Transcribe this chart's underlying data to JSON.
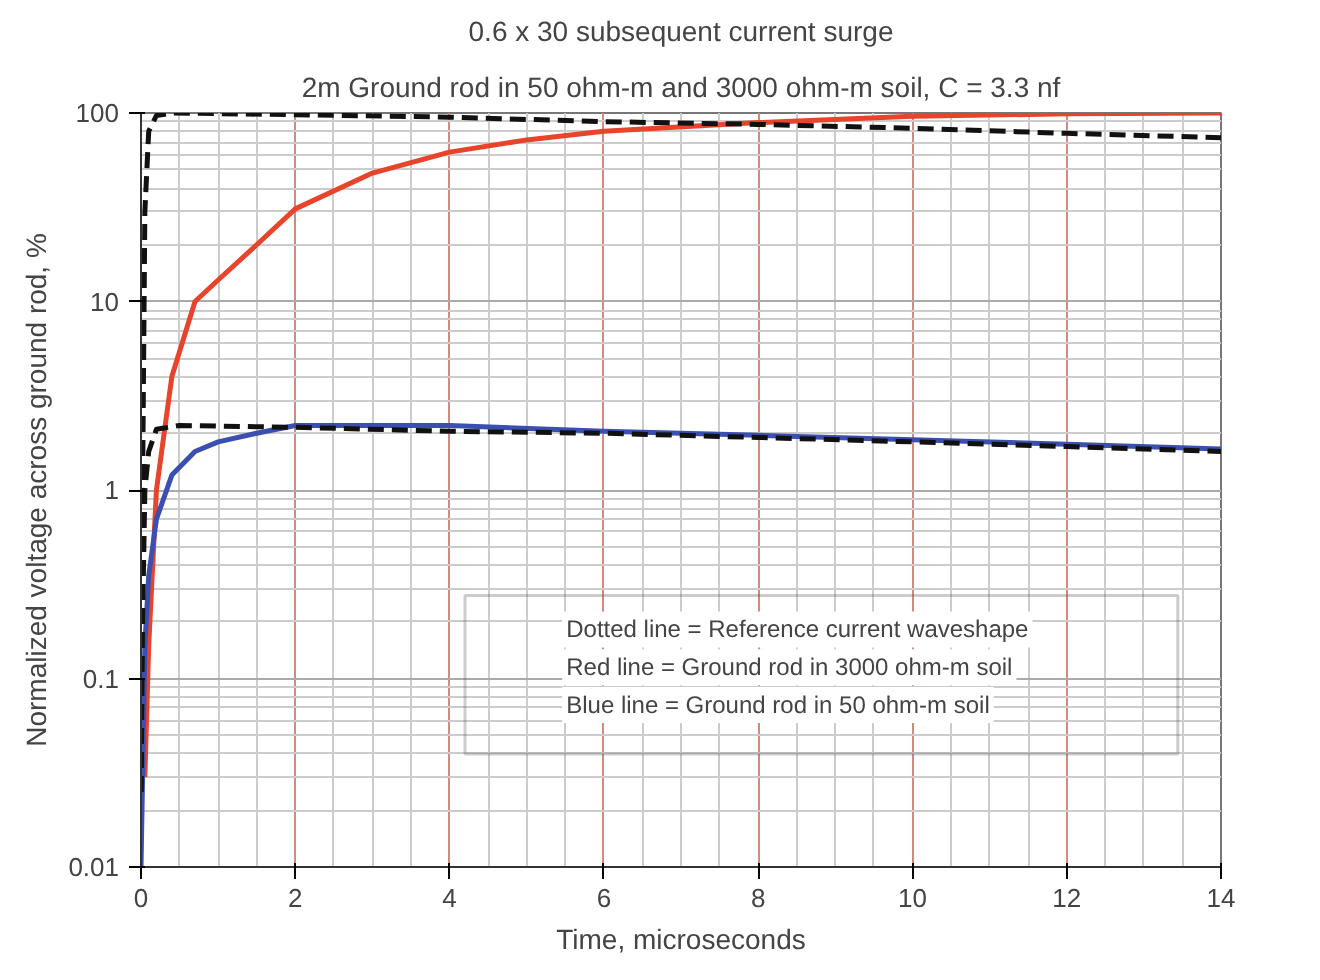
{
  "chart_data": {
    "type": "line",
    "title": "0.6 x 30 subsequent current surge",
    "subtitle": "2m Ground rod in 50 ohm-m and 3000 ohm-m soil, C = 3.3 nf",
    "xlabel": "Time, microseconds",
    "ylabel": "Normalized voltage across ground rod, %",
    "log": "y",
    "xlim": [
      0,
      14
    ],
    "xticks": [
      0,
      2,
      4,
      6,
      8,
      10,
      12,
      14
    ],
    "ylim": [
      0.01,
      100
    ],
    "yticks": [
      0.01,
      0.1,
      1,
      10,
      100
    ],
    "grid": true,
    "marker": "none",
    "annotations": [
      "Dotted line = Reference current waveshape",
      "Red line = Ground rod in 3000 ohm-m soil",
      "Blue line = Ground rod in 50 ohm-m soil"
    ],
    "series": [
      {
        "color": "#e8432b",
        "line_style": "solid",
        "x": [
          0.05,
          0.1,
          0.2,
          0.4,
          0.7,
          1,
          1.5,
          2,
          3,
          4,
          5,
          6,
          8,
          10,
          12,
          14
        ],
        "values": [
          0.03,
          0.15,
          1,
          4,
          10,
          13,
          20,
          31,
          48,
          62,
          72,
          80,
          89,
          96,
          99,
          100
        ]
      },
      {
        "color": "#3a4fb0",
        "line_style": "solid",
        "x": [
          0,
          0.05,
          0.1,
          0.2,
          0.4,
          0.7,
          1,
          1.5,
          2,
          4,
          6,
          8,
          10,
          12,
          14
        ],
        "values": [
          0.01,
          0.15,
          0.35,
          0.7,
          1.2,
          1.6,
          1.8,
          2,
          2.2,
          2.2,
          2.05,
          1.95,
          1.85,
          1.75,
          1.65
        ]
      },
      {
        "color": "#111111",
        "line_style": "dashed",
        "x": [
          0,
          0.02,
          0.05,
          0.1,
          0.2,
          0.4,
          2,
          4,
          6,
          8,
          10,
          12,
          14
        ],
        "values": [
          0.025,
          1,
          30,
          80,
          97,
          100,
          98,
          95,
          90,
          87,
          83,
          78,
          74
        ]
      },
      {
        "color": "#111111",
        "line_style": "dashed",
        "x": [
          0,
          0.02,
          0.05,
          0.1,
          0.2,
          0.5,
          2,
          4,
          6,
          8,
          10,
          12,
          14
        ],
        "values": [
          0.025,
          0.2,
          1,
          1.6,
          2.1,
          2.2,
          2.15,
          2.05,
          2.0,
          1.9,
          1.8,
          1.7,
          1.6
        ]
      }
    ]
  }
}
